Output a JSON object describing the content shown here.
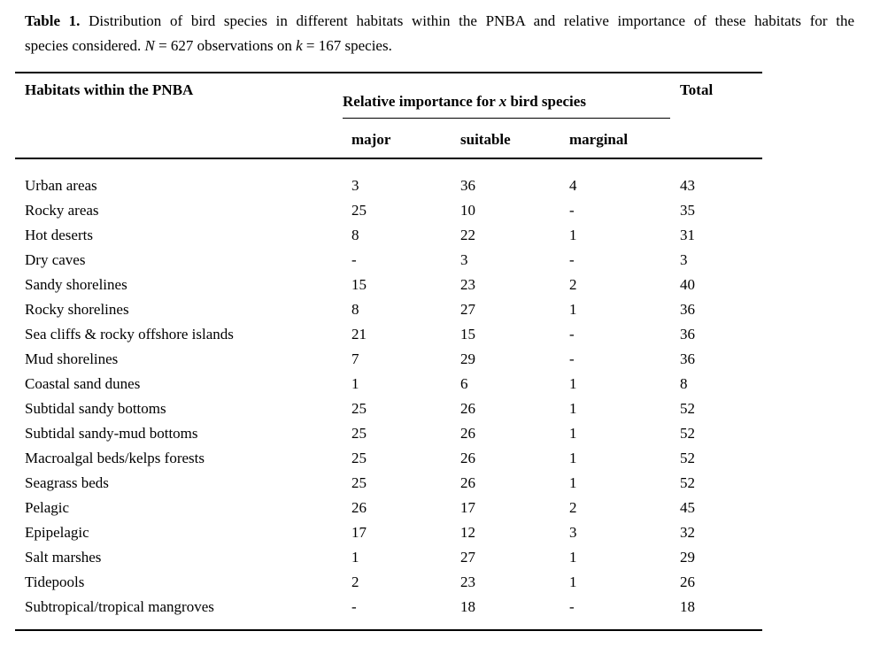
{
  "caption": {
    "bold_label": "Table 1.",
    "line1": " Distribution of bird species in different habitats within the PNBA and relative importance of these habitats for the",
    "line2_start": "species considered. ",
    "n_label": "N",
    "line2_mid": " = 627 observations on ",
    "k_label": "k",
    "line2_end": " = 167 species."
  },
  "table": {
    "habitats_header": "Habitats within the PNBA",
    "group_header": {
      "pre": "Relative importance for ",
      "italic_var": "x",
      "post": " bird species"
    },
    "total_header": "Total",
    "sub_headers": {
      "major": "major",
      "suitable": "suitable",
      "marginal": "marginal"
    },
    "empty_value": "-",
    "rows": [
      {
        "habitat": "Urban areas",
        "major": "3",
        "suitable": "36",
        "marginal": "4",
        "total": "43"
      },
      {
        "habitat": "Rocky areas",
        "major": "25",
        "suitable": "10",
        "marginal": "-",
        "total": "35"
      },
      {
        "habitat": "Hot deserts",
        "major": "8",
        "suitable": "22",
        "marginal": "1",
        "total": "31"
      },
      {
        "habitat": "Dry caves",
        "major": "-",
        "suitable": "3",
        "marginal": "-",
        "total": "3"
      },
      {
        "habitat": "Sandy shorelines",
        "major": "15",
        "suitable": "23",
        "marginal": "2",
        "total": "40"
      },
      {
        "habitat": "Rocky shorelines",
        "major": "8",
        "suitable": "27",
        "marginal": "1",
        "total": "36"
      },
      {
        "habitat": "Sea cliffs & rocky offshore islands",
        "major": "21",
        "suitable": "15",
        "marginal": "-",
        "total": "36"
      },
      {
        "habitat": "Mud shorelines",
        "major": "7",
        "suitable": "29",
        "marginal": "-",
        "total": "36"
      },
      {
        "habitat": "Coastal sand dunes",
        "major": "1",
        "suitable": "6",
        "marginal": "1",
        "total": "8"
      },
      {
        "habitat": "Subtidal sandy bottoms",
        "major": "25",
        "suitable": "26",
        "marginal": "1",
        "total": "52"
      },
      {
        "habitat": "Subtidal sandy-mud bottoms",
        "major": "25",
        "suitable": "26",
        "marginal": "1",
        "total": "52"
      },
      {
        "habitat": "Macroalgal beds/kelps forests",
        "major": "25",
        "suitable": "26",
        "marginal": "1",
        "total": "52"
      },
      {
        "habitat": "Seagrass beds",
        "major": "25",
        "suitable": "26",
        "marginal": "1",
        "total": "52"
      },
      {
        "habitat": "Pelagic",
        "major": "26",
        "suitable": "17",
        "marginal": "2",
        "total": "45"
      },
      {
        "habitat": "Epipelagic",
        "major": "17",
        "suitable": "12",
        "marginal": "3",
        "total": "32"
      },
      {
        "habitat": "Salt marshes",
        "major": "1",
        "suitable": "27",
        "marginal": "1",
        "total": "29"
      },
      {
        "habitat": "Tidepools",
        "major": "2",
        "suitable": "23",
        "marginal": "1",
        "total": "26"
      },
      {
        "habitat": "Subtropical/tropical mangroves",
        "major": "-",
        "suitable": "18",
        "marginal": "-",
        "total": "18"
      }
    ]
  }
}
